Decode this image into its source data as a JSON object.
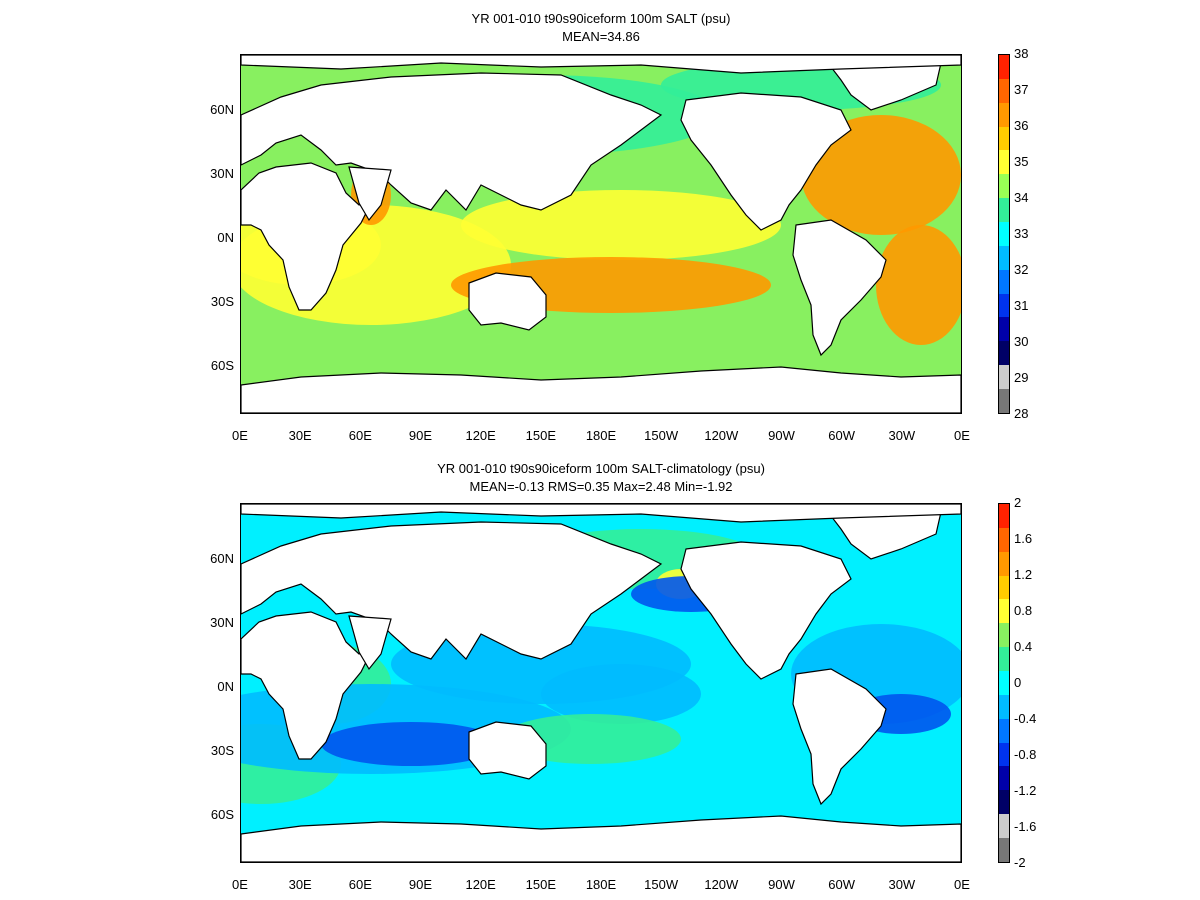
{
  "panels": [
    {
      "title": "YR 001-010 t90s90iceform 100m SALT (psu)",
      "subtitle": "MEAN=34.86",
      "colorbar": {
        "ticks": [
          "38",
          "37",
          "36",
          "35",
          "34",
          "33",
          "32",
          "31",
          "30",
          "29",
          "28"
        ],
        "colors": [
          "#ff2200",
          "#ff6600",
          "#ff9900",
          "#ffcc00",
          "#ffff33",
          "#99ff55",
          "#33ee99",
          "#00ffff",
          "#00bbff",
          "#0077ff",
          "#0033ee",
          "#0000aa",
          "#000066",
          "#cccccc",
          "#777777"
        ]
      },
      "ocean_colors": {
        "base": "#88f060",
        "warm": "#ffff33",
        "hot": "#ff9900",
        "cool": "#33ee99",
        "cold": "#00ffff"
      }
    },
    {
      "title": "YR 001-010 t90s90iceform 100m SALT-climatology (psu)",
      "subtitle": "MEAN=-0.13   RMS=0.35   Max=2.48   Min=-1.92",
      "colorbar": {
        "ticks": [
          "2",
          "1.6",
          "1.2",
          "0.8",
          "0.4",
          "0",
          "-0.4",
          "-0.8",
          "-1.2",
          "-1.6",
          "-2"
        ],
        "colors": [
          "#ff2200",
          "#ff6600",
          "#ff9900",
          "#ffcc00",
          "#ffff33",
          "#88f060",
          "#33ee99",
          "#00ffff",
          "#00bbff",
          "#0077ff",
          "#0033ee",
          "#0000aa",
          "#000066",
          "#cccccc",
          "#777777"
        ]
      },
      "ocean_colors": {
        "base": "#00f0ff",
        "warm": "#33ee99",
        "hot": "#ffff33",
        "cool": "#00bbff",
        "cold": "#0055ee"
      }
    }
  ],
  "x_ticks": [
    "0E",
    "30E",
    "60E",
    "90E",
    "120E",
    "150E",
    "180E",
    "150W",
    "120W",
    "90W",
    "60W",
    "30W",
    "0E"
  ],
  "y_ticks": [
    "60N",
    "30N",
    "0N",
    "30S",
    "60S"
  ]
}
